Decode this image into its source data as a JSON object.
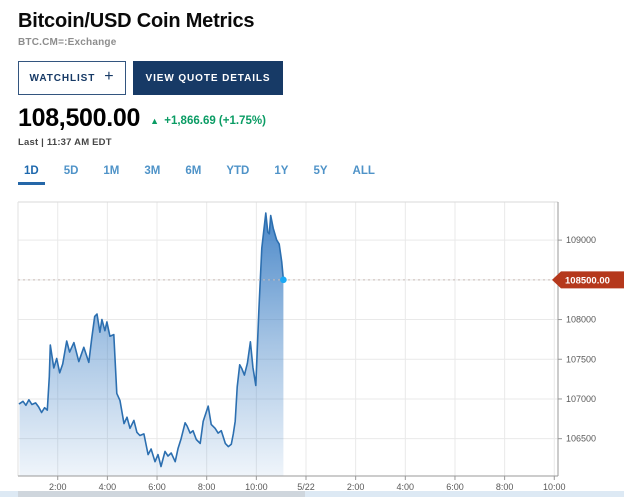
{
  "header": {
    "title": "Bitcoin/USD Coin Metrics",
    "symbol": "BTC.CM=:Exchange",
    "watchlist_label": "WATCHLIST",
    "watchlist_plus": "+",
    "view_quote_label": "VIEW QUOTE DETAILS"
  },
  "quote": {
    "price": "108,500.00",
    "change_arrow": "▲",
    "change_text": "+1,866.69 (+1.75%)",
    "last_label": "Last | 11:37 AM EDT"
  },
  "range_tabs": {
    "items": [
      "1D",
      "5D",
      "1M",
      "3M",
      "6M",
      "YTD",
      "1Y",
      "5Y",
      "ALL"
    ],
    "selected": "1D"
  },
  "colors": {
    "navy": "#173a66",
    "tab_blue": "#4f93c8",
    "tab_selected_blue": "#1d68ad",
    "change_green": "#0a9c64",
    "line_blue": "#2c6fb0",
    "area_top_blue": "#3b7ec4",
    "badge_red": "#b5381c",
    "marker_cyan": "#1ba9f5",
    "grid_gray": "#e9e9e9",
    "axis_gray": "#999999",
    "label_gray": "#595959"
  },
  "chart_data": {
    "type": "area",
    "title": "Bitcoin/USD intraday price (1D)",
    "xlabel": "",
    "ylabel": "",
    "grid": true,
    "legend": "none",
    "x_domain_hours": [
      0.4,
      22.15
    ],
    "x_ticks": [
      {
        "h": 2,
        "label": "2:00"
      },
      {
        "h": 4,
        "label": "4:00"
      },
      {
        "h": 6,
        "label": "6:00"
      },
      {
        "h": 8,
        "label": "8:00"
      },
      {
        "h": 10,
        "label": "10:00"
      },
      {
        "h": 12,
        "label": "5/22"
      },
      {
        "h": 14,
        "label": "2:00"
      },
      {
        "h": 16,
        "label": "4:00"
      },
      {
        "h": 18,
        "label": "6:00"
      },
      {
        "h": 20,
        "label": "8:00"
      },
      {
        "h": 22,
        "label": "10:00"
      }
    ],
    "y_domain": [
      106030,
      109480
    ],
    "y_gridlines": [
      109000,
      108500,
      108000,
      107500,
      107000,
      106500
    ],
    "y_axis_labels": [
      109000,
      108000,
      107500,
      107000,
      106500
    ],
    "last_price": 108500.0,
    "last_price_label": "108500.00",
    "points": [
      [
        0.46,
        106940
      ],
      [
        0.6,
        106970
      ],
      [
        0.72,
        106920
      ],
      [
        0.84,
        106990
      ],
      [
        0.96,
        106930
      ],
      [
        1.11,
        106950
      ],
      [
        1.23,
        106900
      ],
      [
        1.35,
        106830
      ],
      [
        1.47,
        106890
      ],
      [
        1.58,
        106860
      ],
      [
        1.66,
        107280
      ],
      [
        1.7,
        107680
      ],
      [
        1.84,
        107390
      ],
      [
        1.96,
        107510
      ],
      [
        2.08,
        107330
      ],
      [
        2.2,
        107440
      ],
      [
        2.36,
        107730
      ],
      [
        2.48,
        107590
      ],
      [
        2.65,
        107710
      ],
      [
        2.85,
        107470
      ],
      [
        3.05,
        107650
      ],
      [
        3.25,
        107460
      ],
      [
        3.37,
        107760
      ],
      [
        3.49,
        108040
      ],
      [
        3.58,
        108070
      ],
      [
        3.7,
        107840
      ],
      [
        3.78,
        108000
      ],
      [
        3.9,
        107860
      ],
      [
        3.98,
        107970
      ],
      [
        4.1,
        107790
      ],
      [
        4.26,
        107810
      ],
      [
        4.38,
        107070
      ],
      [
        4.51,
        106980
      ],
      [
        4.67,
        106690
      ],
      [
        4.79,
        106770
      ],
      [
        4.91,
        106630
      ],
      [
        5.07,
        106730
      ],
      [
        5.19,
        106580
      ],
      [
        5.31,
        106540
      ],
      [
        5.47,
        106560
      ],
      [
        5.64,
        106300
      ],
      [
        5.76,
        106370
      ],
      [
        5.92,
        106210
      ],
      [
        6.04,
        106300
      ],
      [
        6.16,
        106150
      ],
      [
        6.32,
        106340
      ],
      [
        6.44,
        106280
      ],
      [
        6.57,
        106320
      ],
      [
        6.73,
        106210
      ],
      [
        6.85,
        106380
      ],
      [
        6.97,
        106500
      ],
      [
        7.13,
        106700
      ],
      [
        7.21,
        106660
      ],
      [
        7.33,
        106570
      ],
      [
        7.45,
        106600
      ],
      [
        7.58,
        106490
      ],
      [
        7.74,
        106440
      ],
      [
        7.86,
        106720
      ],
      [
        8.06,
        106910
      ],
      [
        8.18,
        106680
      ],
      [
        8.34,
        106630
      ],
      [
        8.46,
        106570
      ],
      [
        8.59,
        106600
      ],
      [
        8.75,
        106440
      ],
      [
        8.87,
        106400
      ],
      [
        8.99,
        106430
      ],
      [
        9.07,
        106560
      ],
      [
        9.15,
        106720
      ],
      [
        9.23,
        107150
      ],
      [
        9.33,
        107430
      ],
      [
        9.42,
        107380
      ],
      [
        9.52,
        107300
      ],
      [
        9.64,
        107450
      ],
      [
        9.76,
        107720
      ],
      [
        9.86,
        107400
      ],
      [
        9.98,
        107170
      ],
      [
        10.1,
        108100
      ],
      [
        10.22,
        108900
      ],
      [
        10.38,
        109340
      ],
      [
        10.46,
        109100
      ],
      [
        10.52,
        109080
      ],
      [
        10.58,
        109310
      ],
      [
        10.68,
        109150
      ],
      [
        10.82,
        109000
      ],
      [
        10.92,
        108950
      ],
      [
        11.02,
        108730
      ],
      [
        11.09,
        108500
      ]
    ]
  }
}
